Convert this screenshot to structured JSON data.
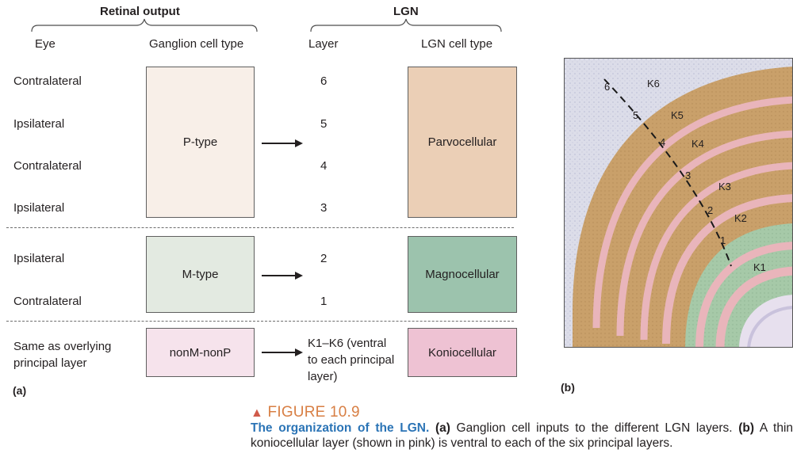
{
  "headers": {
    "retinal_output": "Retinal output",
    "lgn": "LGN",
    "eye": "Eye",
    "ganglion_cell_type": "Ganglion cell type",
    "layer": "Layer",
    "lgn_cell_type": "LGN cell type"
  },
  "eyes": {
    "row6": "Contralateral",
    "row5": "Ipsilateral",
    "row4": "Contralateral",
    "row3": "Ipsilateral",
    "row2": "Ipsilateral",
    "row1": "Contralateral",
    "konio_line1": "Same as overlying",
    "konio_line2": "principal layer"
  },
  "layers": {
    "l6": "6",
    "l5": "5",
    "l4": "4",
    "l3": "3",
    "l2": "2",
    "l1": "1",
    "konio_line1": "K1–K6 (ventral",
    "konio_line2": "to each principal",
    "konio_line3": "layer)"
  },
  "ganglion": {
    "p": "P-type",
    "m": "M-type",
    "k": "nonM-nonP"
  },
  "lgn_cells": {
    "parvo": "Parvocellular",
    "magno": "Magnocellular",
    "konio": "Koniocellular"
  },
  "colors": {
    "p_box": "#f8efe8",
    "m_box": "#e3eae1",
    "k_box": "#f6e3ec",
    "parvo_box": "#ebcfb6",
    "magno_box": "#9cc3ad",
    "konio_box": "#eec2d3",
    "fig_title": "#d87f44",
    "caption_lead": "#2b74b6",
    "micro_tan": "#c9a06a",
    "micro_pink": "#e9b5bb",
    "micro_green": "#a6c9a8",
    "micro_bg": "#dfe0ec"
  },
  "panel_labels": {
    "a": "(a)",
    "b": "(b)"
  },
  "micrograph_labels": {
    "n6": "6",
    "n5": "5",
    "n4": "4",
    "n3": "3",
    "n2": "2",
    "n1": "1",
    "k6": "K6",
    "k5": "K5",
    "k4": "K4",
    "k3": "K3",
    "k2": "K2",
    "k1": "K1"
  },
  "figure": {
    "marker": "▲",
    "title": "FIGURE 10.9",
    "caption_lead": "The organization of the LGN.",
    "caption_a_label": "(a)",
    "caption_a_text": " Ganglion cell inputs to the different LGN layers.",
    "caption_b_label": "(b)",
    "caption_b_text": " A thin koniocellular layer (shown in pink) is ventral to each of the six principal layers."
  }
}
